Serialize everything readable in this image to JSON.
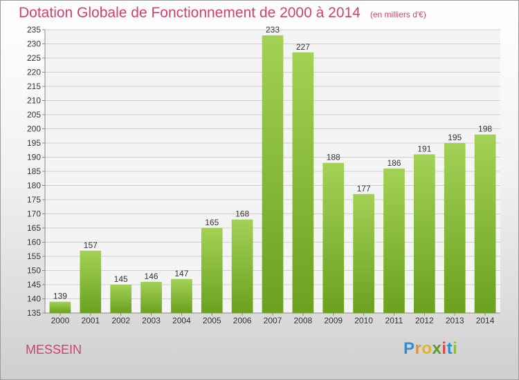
{
  "chart_data": {
    "type": "bar",
    "title": "Dotation Globale de Fonctionnement de 2000 à 2014",
    "subtitle": "(en milliers d'€)",
    "categories": [
      "2000",
      "2001",
      "2002",
      "2003",
      "2004",
      "2005",
      "2006",
      "2007",
      "2008",
      "2009",
      "2010",
      "2011",
      "2012",
      "2013",
      "2014"
    ],
    "values": [
      139,
      157,
      145,
      146,
      147,
      165,
      168,
      233,
      227,
      188,
      177,
      186,
      191,
      195,
      198
    ],
    "ylim": [
      135,
      235
    ],
    "ytick_step": 5,
    "grid": true,
    "legend": "none",
    "bar_color_top": "#a3d155",
    "bar_color_bottom": "#6aa11e",
    "text_color": "#333333",
    "grid_color": "#cfcfcf"
  },
  "header": {
    "title": "Dotation Globale de Fonctionnement de 2000 à 2014",
    "subtitle": "(en milliers d'€)"
  },
  "footer": {
    "commune": "MESSEIN",
    "brand_letters": [
      "P",
      "r",
      "o",
      "x",
      "i",
      "t",
      "i"
    ],
    "brand_colors": [
      "#2f8fd6",
      "#f28c1e",
      "#e8b21a",
      "#5c9b2a",
      "#d94a3d",
      "#2f8fd6",
      "#8bbf3a"
    ]
  }
}
